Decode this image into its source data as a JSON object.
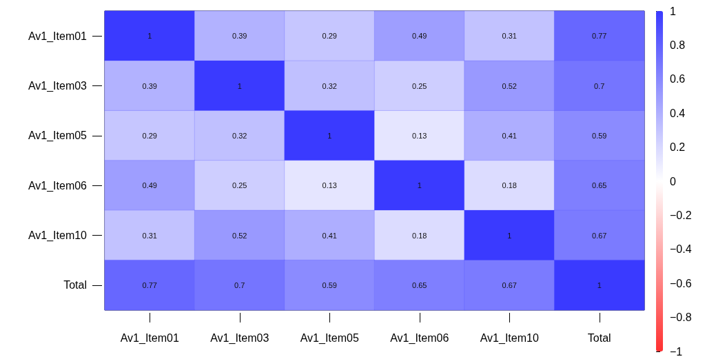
{
  "chart_data": {
    "type": "heatmap",
    "categories": [
      "Av1_Item01",
      "Av1_Item03",
      "Av1_Item05",
      "Av1_Item06",
      "Av1_Item10",
      "Total"
    ],
    "y_categories": [
      "Av1_Item01",
      "Av1_Item03",
      "Av1_Item05",
      "Av1_Item06",
      "Av1_Item10",
      "Total"
    ],
    "cells": [
      [
        1,
        0.39,
        0.29,
        0.49,
        0.31,
        0.77
      ],
      [
        0.39,
        1,
        0.32,
        0.25,
        0.52,
        0.7
      ],
      [
        0.29,
        0.32,
        1,
        0.13,
        0.41,
        0.59
      ],
      [
        0.49,
        0.25,
        0.13,
        1,
        0.18,
        0.65
      ],
      [
        0.31,
        0.52,
        0.41,
        0.18,
        1,
        0.67
      ],
      [
        0.77,
        0.7,
        0.59,
        0.65,
        0.67,
        1
      ]
    ],
    "data_labels": true,
    "clim": [
      -1,
      1
    ],
    "cticks": [
      {
        "value": -1,
        "label": "−1"
      },
      {
        "value": -0.8,
        "label": "−0.8"
      },
      {
        "value": -0.6,
        "label": "−0.6"
      },
      {
        "value": -0.4,
        "label": "−0.4"
      },
      {
        "value": -0.2,
        "label": "−0.2"
      },
      0,
      0.2,
      0.4,
      0.6,
      0.8,
      1
    ]
  }
}
